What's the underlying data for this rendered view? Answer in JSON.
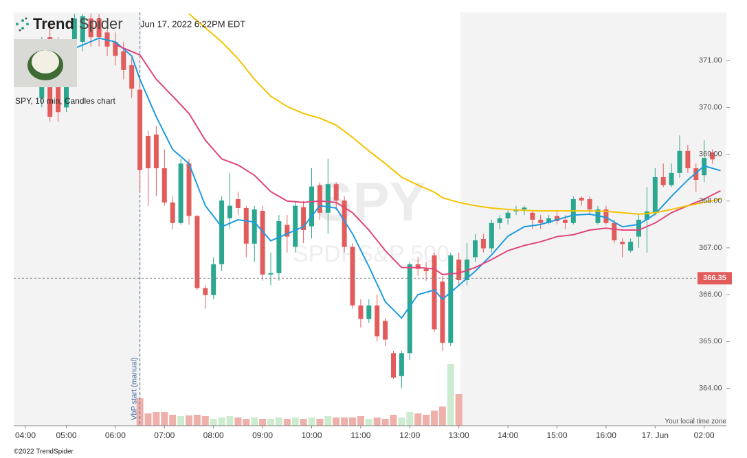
{
  "chart_data": {
    "type": "candlestick",
    "logo_bold": "Trend",
    "logo_light": "Spider",
    "timestamp": "Jun 17, 2022 6:22PM EDT",
    "symbol_info": "SPY, 10 min, Candles chart",
    "watermark": "SPY",
    "watermark_sub": "SPDRS&P 500",
    "timezone_note": "Your local time zone",
    "copyright": "©2022 TrendSpider",
    "categories": [
      "04:00",
      null,
      null,
      null,
      null,
      "05:00",
      null,
      null,
      null,
      null,
      null,
      "06:00",
      null,
      null,
      null,
      null,
      null,
      "07:00",
      null,
      null,
      null,
      null,
      null,
      "08:00",
      null,
      null,
      null,
      null,
      null,
      "09:00",
      null,
      null,
      null,
      null,
      null,
      "10:00",
      null,
      null,
      null,
      null,
      null,
      "11:00",
      null,
      null,
      null,
      null,
      null,
      "12:00",
      null,
      null,
      null,
      null,
      null,
      "13:00",
      null,
      null,
      null,
      null,
      null,
      "14:00",
      null,
      null,
      null,
      null,
      null,
      "15:00",
      null,
      null,
      null,
      null,
      null,
      "16:00",
      null,
      null,
      null,
      null,
      null,
      "17. Jun",
      null,
      null,
      null,
      null,
      null,
      "02:00",
      null,
      null
    ],
    "open": [
      null,
      null,
      370.2,
      371.5,
      371.2,
      370.0,
      371.0,
      371.4,
      371.9,
      371.9,
      371.6,
      371.4,
      371.2,
      370.9,
      370.38,
      369.39,
      369.42,
      368.7,
      367.97,
      367.53,
      368.8,
      367.68,
      366.14,
      365.99,
      366.65,
      367.63,
      368.04,
      367.85,
      367.09,
      367.79,
      366.43,
      366.46,
      367.49,
      367.02,
      367.87,
      367.46,
      368.34,
      367.75,
      368.36,
      368.01,
      367.02,
      365.77,
      365.48,
      365.77,
      365.44,
      364.75,
      364.26,
      364.75,
      366.65,
      366.55,
      366.84,
      366.28,
      364.97,
      366.75,
      366.31,
      366.8,
      367.19,
      366.99,
      367.53,
      367.63,
      367.78,
      367.82,
      367.75,
      367.6,
      367.53,
      367.68,
      367.6,
      367.53,
      368.07,
      368.04,
      367.53,
      367.82,
      367.53,
      367.13,
      366.94,
      367.24,
      367.6,
      367.75,
      368.51,
      368.34,
      368.6,
      369.07,
      368.7,
      368.55,
      369.04,
      null
    ],
    "high": [
      null,
      null,
      371.5,
      371.8,
      371.5,
      371.4,
      372.0,
      372.0,
      372.0,
      372.0,
      371.8,
      371.6,
      371.4,
      371.1,
      370.6,
      369.5,
      369.6,
      369.1,
      368.1,
      368.9,
      368.9,
      367.7,
      366.2,
      366.8,
      368.1,
      368.6,
      368.2,
      367.9,
      367.9,
      367.9,
      366.9,
      367.7,
      367.7,
      368.0,
      368.0,
      368.7,
      368.4,
      368.9,
      368.4,
      368.1,
      367.1,
      365.9,
      365.9,
      366.0,
      365.5,
      364.8,
      364.8,
      366.7,
      366.8,
      366.7,
      366.9,
      366.4,
      366.9,
      366.9,
      367.1,
      367.3,
      367.3,
      367.6,
      367.7,
      367.8,
      367.9,
      367.9,
      367.8,
      367.7,
      367.7,
      367.8,
      367.7,
      368.1,
      368.1,
      368.1,
      367.9,
      367.9,
      367.6,
      367.2,
      367.2,
      367.7,
      368.3,
      368.7,
      368.8,
      368.8,
      369.4,
      369.2,
      368.8,
      369.3,
      369.1,
      null
    ],
    "low": [
      null,
      null,
      370.0,
      369.7,
      369.7,
      369.9,
      370.8,
      371.2,
      371.3,
      371.3,
      371.1,
      370.9,
      370.6,
      370.2,
      368.2,
      367.9,
      368.1,
      367.9,
      367.4,
      367.5,
      367.5,
      366.1,
      365.7,
      365.9,
      366.5,
      367.4,
      367.7,
      366.8,
      366.7,
      366.3,
      366.2,
      366.3,
      366.9,
      366.9,
      367.1,
      367.2,
      367.6,
      367.3,
      367.8,
      366.9,
      365.7,
      365.3,
      365.4,
      365.0,
      364.9,
      364.2,
      364.0,
      364.6,
      366.4,
      366.3,
      365.2,
      364.8,
      364.9,
      366.2,
      366.2,
      366.7,
      366.9,
      366.9,
      367.4,
      367.5,
      367.7,
      367.7,
      367.4,
      367.4,
      367.5,
      367.5,
      367.4,
      367.5,
      367.9,
      367.7,
      367.5,
      367.5,
      367.1,
      366.8,
      366.9,
      367.0,
      366.9,
      367.7,
      368.3,
      368.3,
      368.5,
      368.6,
      368.2,
      368.4,
      368.8,
      null
    ],
    "close": [
      null,
      null,
      371.3,
      369.8,
      369.9,
      371.3,
      371.9,
      371.95,
      371.5,
      371.5,
      371.3,
      371.1,
      370.8,
      370.4,
      368.66,
      368.7,
      368.7,
      367.97,
      367.53,
      368.8,
      367.68,
      366.14,
      365.99,
      366.65,
      368.01,
      367.9,
      367.85,
      367.09,
      367.82,
      366.43,
      366.46,
      367.57,
      367.24,
      367.9,
      367.38,
      368.31,
      367.75,
      368.36,
      368.01,
      367.02,
      365.77,
      365.48,
      365.77,
      365.11,
      365.04,
      364.23,
      364.75,
      366.65,
      366.55,
      366.5,
      365.26,
      364.97,
      366.84,
      366.31,
      366.75,
      367.16,
      366.99,
      367.53,
      367.63,
      367.75,
      367.82,
      367.86,
      367.6,
      367.53,
      367.63,
      367.57,
      367.53,
      368.04,
      368.01,
      367.82,
      367.82,
      367.53,
      367.16,
      367.08,
      367.13,
      367.6,
      367.78,
      368.51,
      368.34,
      368.6,
      369.07,
      368.7,
      368.45,
      368.92,
      368.89,
      null
    ],
    "up_color": "#2ba68f",
    "down_color": "#e25c5c",
    "ylim": [
      363.2,
      372.03
    ],
    "yticks": [
      {
        "value": 364,
        "label": "364.00"
      },
      {
        "value": 365,
        "label": "365.00"
      },
      {
        "value": 366,
        "label": "366.00"
      },
      {
        "value": 367,
        "label": "367.00"
      },
      {
        "value": 368,
        "label": "368.00"
      },
      {
        "value": 369,
        "label": "369.00"
      },
      {
        "value": 370,
        "label": "370.00"
      },
      {
        "value": 371,
        "label": "371.00"
      }
    ],
    "series": [
      {
        "color": "#1e9be0",
        "x": [
          6,
          9,
          11,
          13,
          14,
          16,
          18,
          20,
          22,
          24,
          26,
          28,
          30,
          32,
          34,
          36,
          38,
          40,
          42,
          44,
          46,
          48,
          50,
          51,
          53,
          55,
          57,
          59,
          61,
          63,
          65,
          67,
          69,
          71,
          73,
          75,
          77,
          79,
          81,
          83,
          85
        ],
        "values": [
          371.26,
          371.48,
          371.4,
          371.1,
          370.6,
          369.8,
          369.1,
          368.8,
          367.9,
          367.45,
          367.6,
          367.55,
          367.15,
          367.3,
          367.45,
          367.9,
          367.85,
          367.3,
          366.6,
          365.85,
          365.5,
          366.0,
          366.1,
          365.9,
          366.2,
          366.5,
          366.85,
          367.25,
          367.45,
          367.5,
          367.6,
          367.7,
          367.72,
          367.65,
          367.45,
          367.5,
          367.72,
          368.1,
          368.45,
          368.75,
          368.65
        ]
      },
      {
        "color": "#e0457b",
        "x": [
          11,
          14,
          16,
          18,
          20,
          22,
          24,
          26,
          28,
          30,
          32,
          34,
          36,
          38,
          40,
          42,
          44,
          46,
          48,
          50,
          51,
          53,
          55,
          57,
          59,
          61,
          63,
          65,
          67,
          69,
          71,
          73,
          75,
          77,
          79,
          81,
          83,
          85
        ],
        "values": [
          371.34,
          371.12,
          370.6,
          370.24,
          369.87,
          369.3,
          368.9,
          368.77,
          368.55,
          368.2,
          368.0,
          367.97,
          368.0,
          367.97,
          367.75,
          367.38,
          366.94,
          366.58,
          366.58,
          366.55,
          366.43,
          366.46,
          366.58,
          366.75,
          366.94,
          367.05,
          367.13,
          367.24,
          367.28,
          367.38,
          367.42,
          367.38,
          367.38,
          367.53,
          367.75,
          367.9,
          368.04,
          368.22
        ]
      },
      {
        "color": "#f5c200",
        "x": [
          20,
          22,
          24,
          26,
          28,
          30,
          32,
          34,
          36,
          38,
          40,
          42,
          44,
          46,
          48,
          50,
          51,
          53,
          55,
          57,
          59,
          61,
          63,
          65,
          67,
          69,
          71,
          73,
          75,
          77,
          79,
          81,
          83,
          85
        ],
        "values": [
          372.0,
          371.7,
          371.4,
          371.04,
          370.6,
          370.24,
          370.02,
          369.87,
          369.77,
          369.62,
          369.36,
          369.07,
          368.8,
          368.51,
          368.34,
          368.19,
          368.07,
          367.97,
          367.9,
          367.85,
          367.82,
          367.8,
          367.79,
          367.79,
          367.79,
          367.79,
          367.78,
          367.75,
          367.72,
          367.75,
          367.82,
          367.9,
          367.97,
          368.04
        ]
      }
    ],
    "volume": {
      "ylim": [
        0,
        100
      ],
      "up_color": "#cdeccf",
      "down_color": "#eeb0ab",
      "values": [
        null,
        null,
        null,
        null,
        null,
        null,
        null,
        null,
        null,
        null,
        null,
        null,
        null,
        null,
        40,
        18,
        20,
        20,
        16,
        14,
        15,
        16,
        14,
        10,
        12,
        14,
        12,
        10,
        12,
        10,
        10,
        12,
        10,
        12,
        10,
        12,
        10,
        14,
        12,
        12,
        12,
        14,
        10,
        12,
        10,
        16,
        12,
        20,
        18,
        16,
        22,
        28,
        90,
        46,
        null,
        null,
        null,
        null,
        null,
        null,
        null,
        null,
        null,
        null,
        null,
        null,
        null,
        null,
        null,
        null,
        null,
        null,
        null,
        null,
        null,
        null,
        null,
        null,
        null,
        null,
        null,
        null,
        null,
        null,
        null,
        null
      ]
    },
    "last_price": 366.35,
    "last_price_color": "#e25c5c",
    "vbp_start": {
      "x": 14,
      "label": "VbP start (manual)"
    }
  }
}
